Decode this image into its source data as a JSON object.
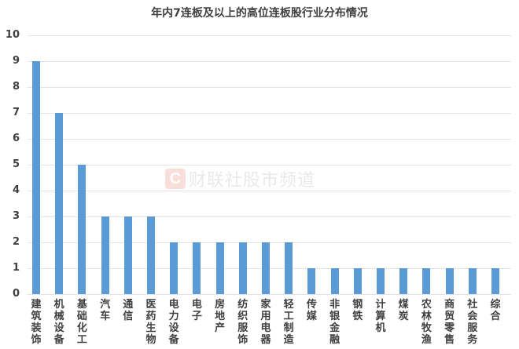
{
  "chart_data": {
    "type": "bar",
    "title": "年内7连板及以上的高位连板股行业分布情况",
    "xlabel": "",
    "ylabel": "",
    "ylim": [
      0,
      10
    ],
    "yticks": [
      0,
      1,
      2,
      3,
      4,
      5,
      6,
      7,
      8,
      9,
      10
    ],
    "grid": true,
    "legend": null,
    "bar_color": "#5b9bd5",
    "categories": [
      "建筑装饰",
      "机械设备",
      "基础化工",
      "汽车",
      "通信",
      "医药生物",
      "电力设备",
      "电子",
      "房地产",
      "纺织服饰",
      "家用电器",
      "轻工制造",
      "传媒",
      "非银金融",
      "钢铁",
      "计算机",
      "煤炭",
      "农林牧渔",
      "商贸零售",
      "社会服务",
      "综合"
    ],
    "values": [
      9,
      7,
      5,
      3,
      3,
      3,
      2,
      2,
      2,
      2,
      2,
      2,
      1,
      1,
      1,
      1,
      1,
      1,
      1,
      1,
      1
    ]
  },
  "watermark": {
    "logo_letter": "C",
    "text": "财联社股市频道"
  }
}
